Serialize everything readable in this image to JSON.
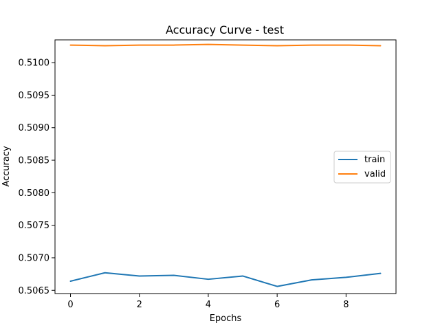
{
  "chart_data": {
    "type": "line",
    "title": "Accuracy Curve - test",
    "xlabel": "Epochs",
    "ylabel": "Accuracy",
    "x": [
      0,
      1,
      2,
      3,
      4,
      5,
      6,
      7,
      8,
      9
    ],
    "xlim": [
      -0.45,
      9.45
    ],
    "ylim": [
      0.50645,
      0.51035
    ],
    "xticks": [
      0,
      2,
      4,
      6,
      8
    ],
    "xtick_labels": [
      "0",
      "2",
      "4",
      "6",
      "8"
    ],
    "yticks": [
      0.5065,
      0.507,
      0.5075,
      0.508,
      0.5085,
      0.509,
      0.5095,
      0.51
    ],
    "ytick_labels": [
      "0.5065",
      "0.5070",
      "0.5075",
      "0.5080",
      "0.5085",
      "0.5090",
      "0.5095",
      "0.5100"
    ],
    "grid": false,
    "legend_position": "center-right",
    "series": [
      {
        "name": "train",
        "color": "#1f77b4",
        "values": [
          0.50664,
          0.50677,
          0.50672,
          0.50673,
          0.50667,
          0.50672,
          0.50656,
          0.50666,
          0.5067,
          0.50676
        ]
      },
      {
        "name": "valid",
        "color": "#ff7f0e",
        "values": [
          0.51027,
          0.51026,
          0.51027,
          0.51027,
          0.51028,
          0.51027,
          0.51026,
          0.51027,
          0.51027,
          0.51026
        ]
      }
    ]
  }
}
